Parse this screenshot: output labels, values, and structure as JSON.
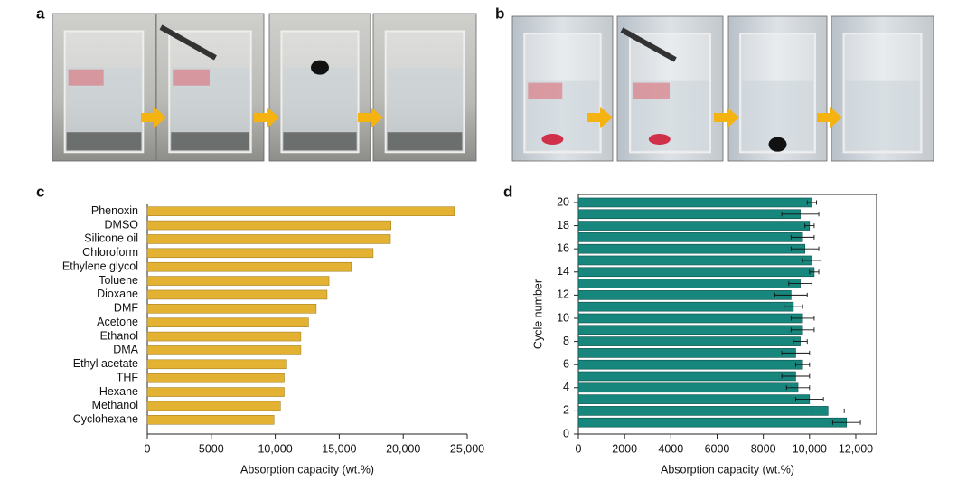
{
  "photo_panels": [
    {
      "label": "a"
    },
    {
      "label": "b"
    }
  ],
  "chart_data": [
    {
      "type": "hbar",
      "panel_label": "c",
      "x_label": "Absorption capacity (wt.%)",
      "categories": [
        "Phenoxin",
        "DMSO",
        "Silicone oil",
        "Chloroform",
        "Ethylene glycol",
        "Toluene",
        "Dioxane",
        "DMF",
        "Acetone",
        "Ethanol",
        "DMA",
        "Ethyl acetate",
        "THF",
        "Hexane",
        "Methanol",
        "Cyclohexane"
      ],
      "values": [
        24000,
        19050,
        19000,
        17650,
        15950,
        14200,
        14050,
        13200,
        12600,
        12000,
        12000,
        10900,
        10700,
        10700,
        10400,
        9900
      ],
      "color": "#e3b232",
      "xlim": [
        0,
        25000
      ],
      "xticks": [
        0,
        5000,
        {
          "value": 10000,
          "label": "10,000"
        },
        {
          "value": 15000,
          "label": "15,000"
        },
        {
          "value": 20000,
          "label": "20,000"
        },
        {
          "value": 25000,
          "label": "25,000"
        }
      ],
      "grid": false
    },
    {
      "type": "hbar-error",
      "panel_label": "d",
      "x_label": "Absorption capacity (wt.%)",
      "y_label": "Cycle number",
      "y": [
        1,
        2,
        3,
        4,
        5,
        6,
        7,
        8,
        9,
        10,
        11,
        12,
        13,
        14,
        15,
        16,
        17,
        18,
        19,
        20
      ],
      "values": [
        11600,
        10800,
        10000,
        9500,
        9400,
        9700,
        9400,
        9600,
        9700,
        9700,
        9300,
        9200,
        9600,
        10200,
        10100,
        9800,
        9700,
        10000,
        9600,
        10100
      ],
      "errors": [
        600,
        700,
        600,
        500,
        600,
        300,
        600,
        300,
        500,
        500,
        400,
        700,
        500,
        200,
        400,
        600,
        500,
        200,
        800,
        200
      ],
      "color": "#17877d",
      "xlim": [
        0,
        12900
      ],
      "ylim": [
        0,
        20.7
      ],
      "xticks": [
        0,
        2000,
        4000,
        6000,
        8000,
        {
          "value": 10000,
          "label": "10,000"
        },
        {
          "value": 12000,
          "label": "12,000"
        }
      ],
      "yticks": [
        0,
        2,
        4,
        6,
        8,
        10,
        12,
        14,
        16,
        18,
        20
      ],
      "grid": false
    }
  ]
}
